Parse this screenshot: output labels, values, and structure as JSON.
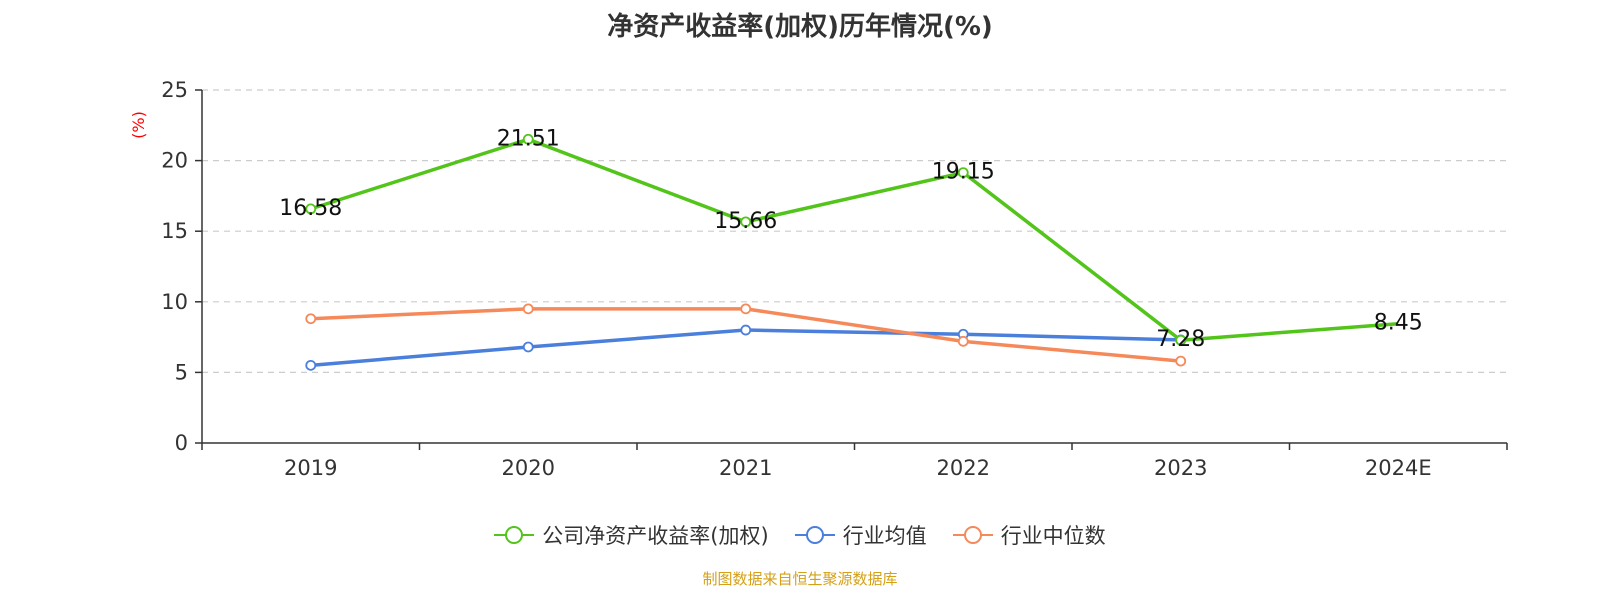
{
  "chart_data": {
    "type": "line",
    "title": "净资产收益率(加权)历年情况(%)",
    "ylabel": "(%)",
    "xlabel": "",
    "ylim": [
      0,
      25
    ],
    "yticks": [
      0,
      5,
      10,
      15,
      20,
      25
    ],
    "categories": [
      "2019",
      "2020",
      "2021",
      "2022",
      "2023",
      "2024E"
    ],
    "series": [
      {
        "name": "公司净资产收益率(加权)",
        "color": "#52c41a",
        "values": [
          16.58,
          21.51,
          15.66,
          19.15,
          7.28,
          8.45
        ],
        "labels": [
          "16.58",
          "21.51",
          "15.66",
          "19.15",
          "7.28",
          "8.45"
        ]
      },
      {
        "name": "行业均值",
        "color": "#4a7fdc",
        "values": [
          5.5,
          6.8,
          8.0,
          7.7,
          7.3,
          null
        ]
      },
      {
        "name": "行业中位数",
        "color": "#f5895a",
        "values": [
          8.8,
          9.5,
          9.5,
          7.2,
          5.8,
          null
        ]
      }
    ],
    "grid": true,
    "legend_position": "bottom-center"
  },
  "source_note": "制图数据来自恒生聚源数据库"
}
